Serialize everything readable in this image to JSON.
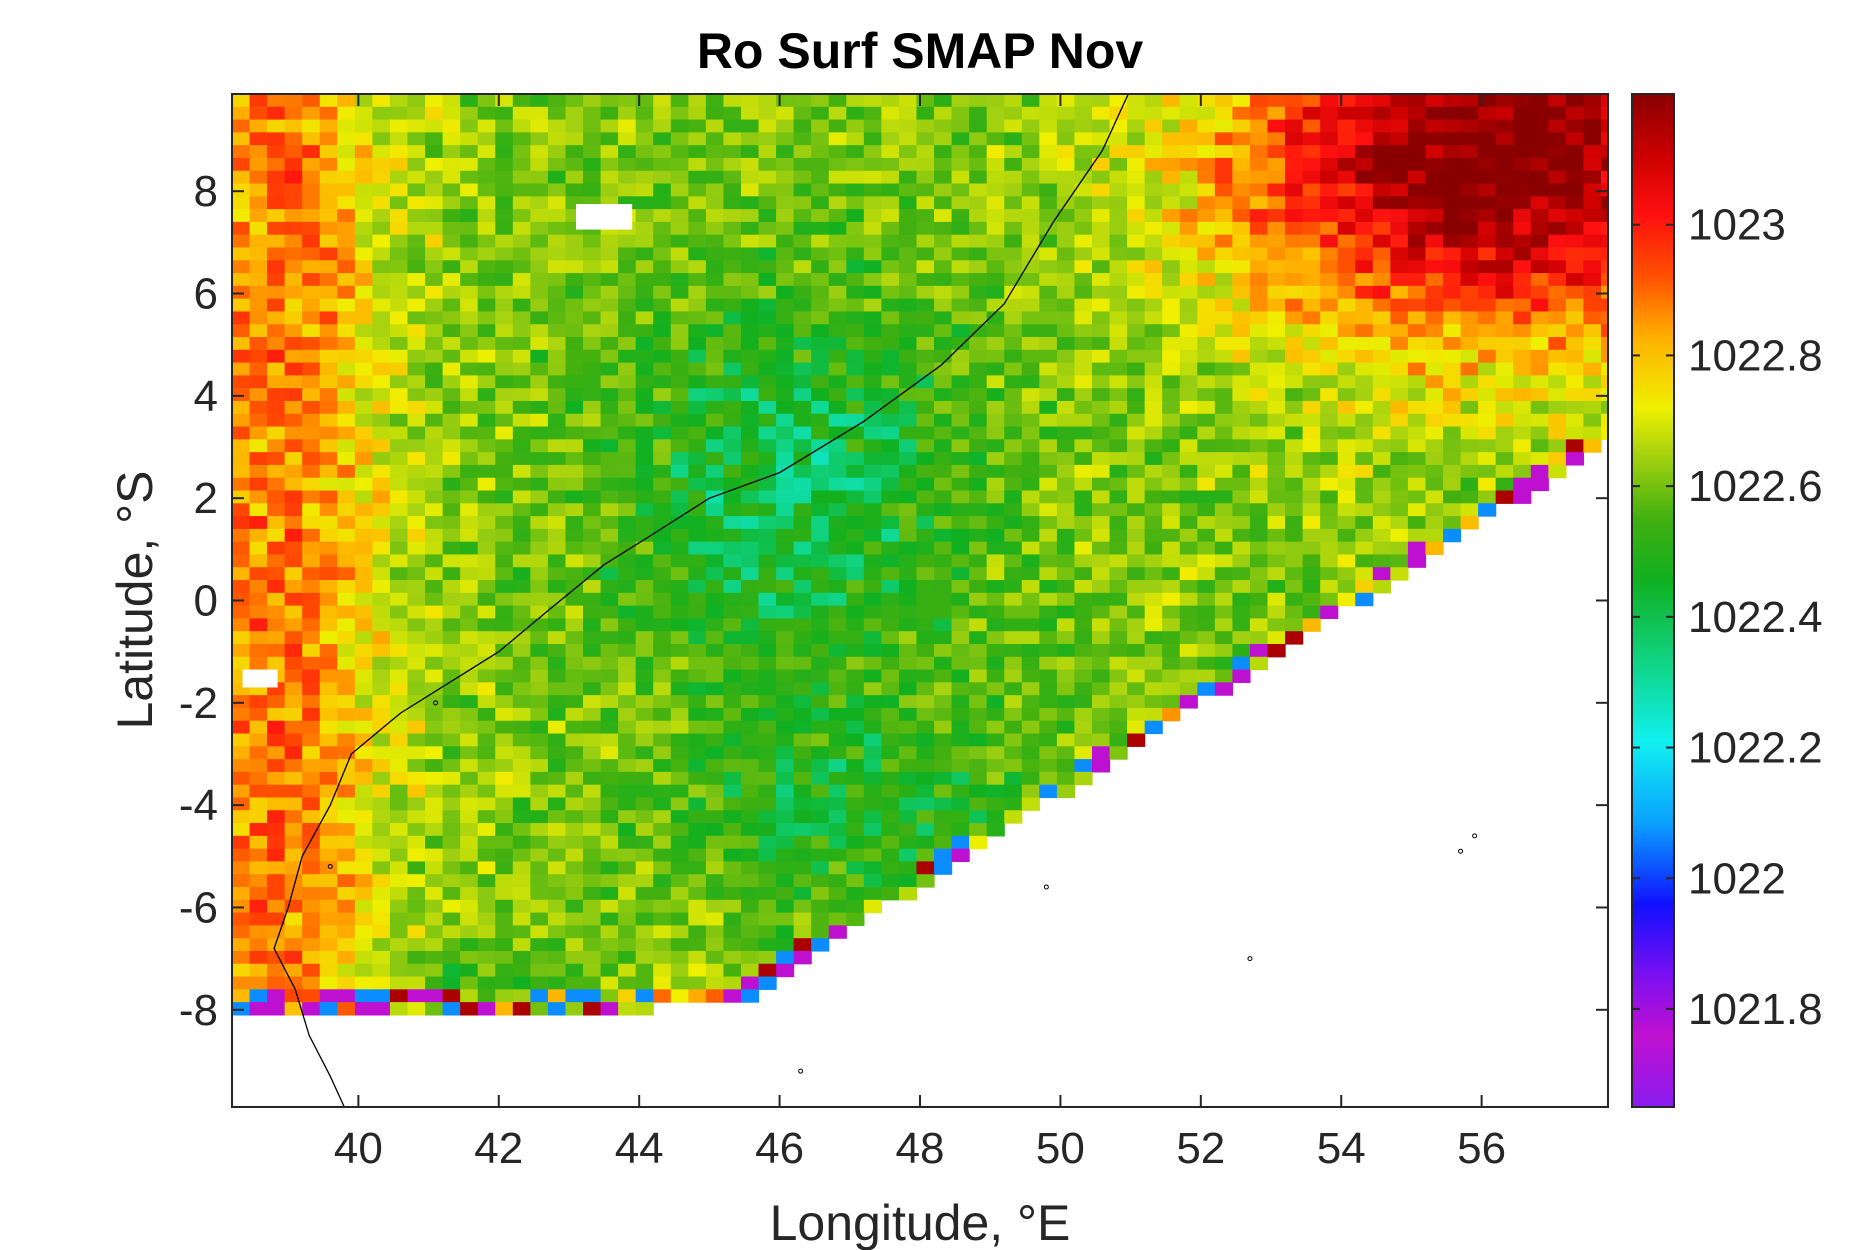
{
  "chart_data": {
    "type": "heatmap",
    "title": "Ro Surf SMAP Nov",
    "xlabel": "Longitude, °E",
    "ylabel": "Latitude, °S",
    "xlim": [
      38.2,
      57.8
    ],
    "ylim": [
      -9.9,
      9.9
    ],
    "xticks": [
      40,
      42,
      44,
      46,
      48,
      50,
      52,
      54,
      56
    ],
    "xtick_labels": [
      "40",
      "42",
      "44",
      "46",
      "48",
      "50",
      "52",
      "54",
      "56"
    ],
    "yticks": [
      8,
      6,
      4,
      2,
      0,
      -2,
      -4,
      -6,
      -8
    ],
    "ytick_labels": [
      "8",
      "6",
      "4",
      "2",
      "0",
      "-2",
      "-4",
      "-6",
      "-8"
    ],
    "colorbar": {
      "clim": [
        1021.65,
        1023.2
      ],
      "ticks": [
        1023,
        1022.8,
        1022.6,
        1022.4,
        1022.2,
        1022,
        1021.8
      ],
      "tick_labels": [
        "1023",
        "1022.8",
        "1022.6",
        "1022.4",
        "1022.2",
        "1022",
        "1021.8"
      ],
      "colormap": [
        "#8a1cf0",
        "#c010d0",
        "#7a10f0",
        "#1010ff",
        "#0aa0ff",
        "#10f0f0",
        "#10d890",
        "#10b020",
        "#40b010",
        "#a0d010",
        "#f0f000",
        "#ffb000",
        "#ff5000",
        "#ff1010",
        "#cc0000",
        "#8a0000"
      ]
    },
    "grid": false,
    "cell_size_deg": 0.25,
    "field_description_points": [
      {
        "lon": 55.5,
        "lat": 8.5,
        "value": 1023.15
      },
      {
        "lon": 52.5,
        "lat": 6.5,
        "value": 1022.95
      },
      {
        "lon": 45.5,
        "lat": 4.0,
        "value": 1022.35
      },
      {
        "lon": 44.5,
        "lat": 0.0,
        "value": 1022.4
      },
      {
        "lon": 39.0,
        "lat": -2.0,
        "value": 1022.85
      },
      {
        "lon": 46.0,
        "lat": -5.0,
        "value": 1022.35
      },
      {
        "lon": 42.0,
        "lat": -7.5,
        "value": 1022.3
      }
    ]
  }
}
